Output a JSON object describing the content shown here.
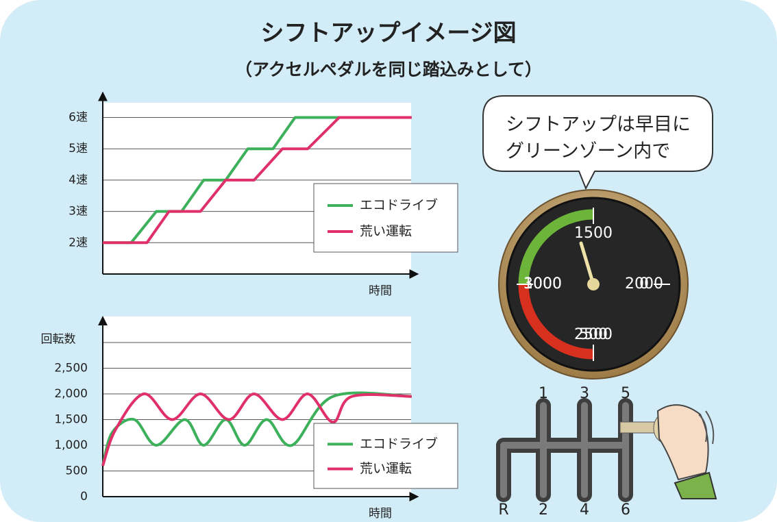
{
  "title": "シフトアップイメージ図",
  "subtitle": "（アクセルペダルを同じ踏込みとして）",
  "chart_data": [
    {
      "type": "line",
      "xlabel": "時間",
      "xlim": [
        0,
        100
      ],
      "ylim": [
        1,
        6.8
      ],
      "yticks": [
        {
          "value": 2,
          "label": "2速"
        },
        {
          "value": 3,
          "label": "3速"
        },
        {
          "value": 4,
          "label": "4速"
        },
        {
          "value": 5,
          "label": "5速"
        },
        {
          "value": 6,
          "label": "6速"
        }
      ],
      "grid": true,
      "smooth": false,
      "series": [
        {
          "name": "エコドライブ",
          "color": "#3cb05a",
          "x": [
            0,
            9,
            17,
            25,
            32,
            39,
            46,
            54,
            61,
            98
          ],
          "values": [
            2,
            2,
            3,
            3,
            4,
            4,
            5,
            5,
            6,
            6
          ]
        },
        {
          "name": "荒い運転",
          "color": "#e0306a",
          "x": [
            0,
            14,
            21,
            31,
            39,
            48,
            57,
            65,
            75,
            98
          ],
          "values": [
            2,
            2,
            3,
            3,
            4,
            4,
            5,
            5,
            6,
            6
          ]
        }
      ]
    },
    {
      "type": "line",
      "xlabel": "時間",
      "ylabel": "回転数",
      "xlim": [
        0,
        100
      ],
      "ylim": [
        0,
        3500
      ],
      "yticks": [
        0,
        500,
        {
          "value": 1000,
          "label": "1,000"
        },
        {
          "value": 1500,
          "label": "1,500"
        },
        {
          "value": 2000,
          "label": "2,000"
        },
        {
          "value": 2500,
          "label": "2,500"
        },
        {
          "value": 3000,
          "label": null
        }
      ],
      "grid": true,
      "smooth": true,
      "series": [
        {
          "name": "エコドライブ",
          "color": "#3cb05a",
          "x": [
            0,
            3,
            10,
            17,
            26,
            32,
            39,
            45,
            52,
            60,
            73,
            98
          ],
          "values": [
            600,
            1250,
            1500,
            1000,
            1500,
            1000,
            1500,
            1000,
            1500,
            1000,
            1950,
            1950
          ]
        },
        {
          "name": "荒い運転",
          "color": "#e0306a",
          "x": [
            0,
            4,
            13,
            22,
            31,
            40,
            48,
            57,
            65,
            73,
            79,
            98
          ],
          "values": [
            600,
            1300,
            2000,
            1500,
            2000,
            1500,
            2000,
            1500,
            2000,
            1450,
            1950,
            1950
          ]
        }
      ]
    }
  ],
  "bubble": {
    "lines": [
      "シフトアップは早目に",
      "グリーンゾーン内で"
    ]
  },
  "gauge": {
    "ticks": [
      0,
      500,
      1000,
      1500,
      2000,
      2500,
      3000
    ],
    "green_zone": [
      1000,
      1500
    ],
    "red_zone": [
      2500,
      3000
    ]
  },
  "shifter": {
    "top_labels": [
      "1",
      "3",
      "5"
    ],
    "bottom_labels": [
      "R",
      "2",
      "4",
      "6"
    ]
  }
}
